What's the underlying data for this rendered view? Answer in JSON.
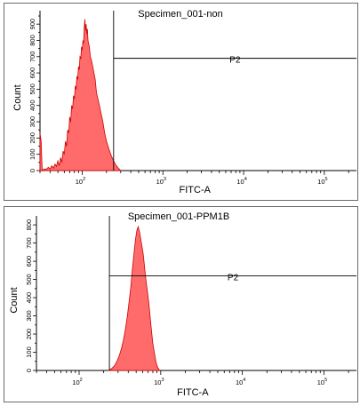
{
  "chart_data": [
    {
      "type": "area",
      "title": "Specimen_001-non",
      "xlabel": "FITC-A",
      "ylabel": "Count",
      "x_scale": "log",
      "xlim": [
        30,
        250000
      ],
      "x_ticks": [
        {
          "value": 100,
          "base": "10",
          "exp": "2"
        },
        {
          "value": 1000,
          "base": "10",
          "exp": "3"
        },
        {
          "value": 10000,
          "base": "10",
          "exp": "4"
        },
        {
          "value": 100000,
          "base": "10",
          "exp": "5"
        }
      ],
      "ylim": [
        0,
        950
      ],
      "y_ticks": [
        0,
        100,
        200,
        300,
        400,
        500,
        600,
        700,
        800,
        900
      ],
      "fill_color": "#ff6b6b",
      "line_color": "#cc0000",
      "gate": {
        "label": "P2",
        "x_start": 245,
        "x_end": 250000,
        "level": 690
      },
      "series": [
        {
          "x": [
            30,
            31,
            32,
            34,
            36,
            38,
            40,
            42,
            44,
            46,
            48,
            50,
            52,
            54,
            56,
            58,
            60,
            62,
            64,
            66,
            68,
            70,
            72,
            74,
            76,
            78,
            80,
            82,
            84,
            86,
            88,
            90,
            92,
            94,
            96,
            98,
            100,
            102,
            104,
            106,
            108,
            110,
            112,
            114,
            116,
            118,
            120,
            123,
            126,
            130,
            135,
            140,
            145,
            150,
            160,
            170,
            180,
            190,
            200,
            215,
            230,
            245,
            260,
            280,
            300
          ],
          "values": [
            230,
            180,
            0,
            10,
            8,
            20,
            10,
            30,
            15,
            40,
            25,
            60,
            30,
            80,
            50,
            120,
            100,
            180,
            150,
            250,
            230,
            330,
            300,
            400,
            380,
            460,
            440,
            520,
            500,
            580,
            560,
            640,
            620,
            700,
            690,
            760,
            740,
            800,
            780,
            880,
            930,
            860,
            900,
            840,
            870,
            800,
            780,
            760,
            700,
            680,
            640,
            600,
            560,
            480,
            420,
            360,
            300,
            230,
            180,
            130,
            90,
            60,
            35,
            15,
            0
          ]
        }
      ]
    },
    {
      "type": "area",
      "title": "Specimen_001-PPM1B",
      "xlabel": "FITC-A",
      "ylabel": "Count",
      "x_scale": "log",
      "xlim": [
        30,
        250000
      ],
      "x_ticks": [
        {
          "value": 100,
          "base": "10",
          "exp": "2"
        },
        {
          "value": 1000,
          "base": "10",
          "exp": "3"
        },
        {
          "value": 10000,
          "base": "10",
          "exp": "4"
        },
        {
          "value": 100000,
          "base": "10",
          "exp": "5"
        }
      ],
      "ylim": [
        0,
        820
      ],
      "y_ticks": [
        0,
        100,
        200,
        300,
        400,
        500,
        600,
        700,
        800
      ],
      "fill_color": "#ff6b6b",
      "line_color": "#cc0000",
      "gate": {
        "label": "P2",
        "x_start": 235,
        "x_end": 250000,
        "level": 520
      },
      "series": [
        {
          "x": [
            230,
            250,
            270,
            290,
            310,
            330,
            350,
            370,
            390,
            410,
            430,
            450,
            470,
            490,
            510,
            530,
            550,
            570,
            590,
            610,
            630,
            650,
            680,
            710,
            740,
            770,
            800,
            840,
            880,
            920,
            970
          ],
          "values": [
            0,
            10,
            25,
            50,
            80,
            120,
            170,
            230,
            300,
            380,
            460,
            560,
            640,
            720,
            770,
            790,
            760,
            720,
            680,
            640,
            580,
            520,
            450,
            380,
            300,
            220,
            150,
            90,
            40,
            15,
            0
          ]
        }
      ]
    }
  ]
}
